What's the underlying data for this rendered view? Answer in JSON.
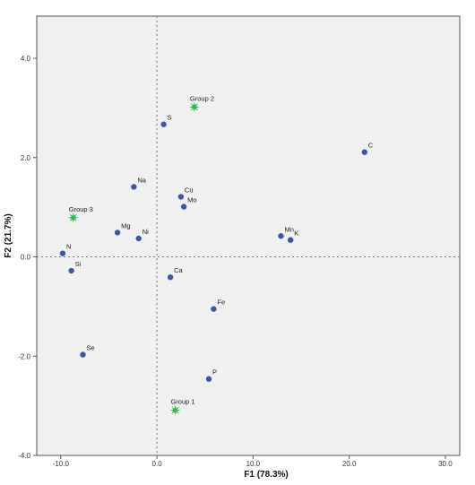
{
  "chart_data": {
    "type": "scatter",
    "xlabel": "F1  (78.3%)",
    "ylabel": "F2  (21.7%)",
    "xlim": [
      -12.5,
      31.5
    ],
    "ylim": [
      -4.0,
      4.85
    ],
    "xticks": [
      -10.0,
      0.0,
      10.0,
      20.0,
      30.0
    ],
    "yticks": [
      -4.0,
      -2.0,
      0.0,
      2.0,
      4.0
    ],
    "xtick_labels": [
      "-10.0",
      "0.0",
      "10.0",
      "20.0",
      "30.0"
    ],
    "ytick_labels": [
      "-4.0",
      "-2.0",
      "0.0",
      "2.0",
      "4.0"
    ],
    "reference_lines": {
      "x": 0,
      "y": 0,
      "style": "dotted"
    },
    "grid": false,
    "series": [
      {
        "marker": "circle",
        "color": "#3a56a8",
        "points": [
          {
            "label": "S",
            "x": 0.7,
            "y": 2.67
          },
          {
            "label": "C",
            "x": 21.6,
            "y": 2.11
          },
          {
            "label": "Na",
            "x": -2.4,
            "y": 1.41
          },
          {
            "label": "Cu",
            "x": 2.5,
            "y": 1.21
          },
          {
            "label": "Mo",
            "x": 2.8,
            "y": 1.01
          },
          {
            "label": "Mg",
            "x": -4.1,
            "y": 0.49
          },
          {
            "label": "Ni",
            "x": -1.9,
            "y": 0.37
          },
          {
            "label": "Mn",
            "x": 12.9,
            "y": 0.42
          },
          {
            "label": "K",
            "x": 13.9,
            "y": 0.34
          },
          {
            "label": "N",
            "x": -9.8,
            "y": 0.07
          },
          {
            "label": "Si",
            "x": -8.9,
            "y": -0.28
          },
          {
            "label": "Ca",
            "x": 1.4,
            "y": -0.41
          },
          {
            "label": "Fe",
            "x": 5.9,
            "y": -1.05
          },
          {
            "label": "Se",
            "x": -7.7,
            "y": -1.97
          },
          {
            "label": "P",
            "x": 5.4,
            "y": -2.46
          }
        ]
      },
      {
        "marker": "star",
        "color": "#2db84a",
        "points": [
          {
            "label": "Group 2",
            "x": 3.9,
            "y": 3.02
          },
          {
            "label": "Group 3",
            "x": -8.7,
            "y": 0.79
          },
          {
            "label": "Group 1",
            "x": 1.9,
            "y": -3.09
          }
        ]
      }
    ]
  }
}
